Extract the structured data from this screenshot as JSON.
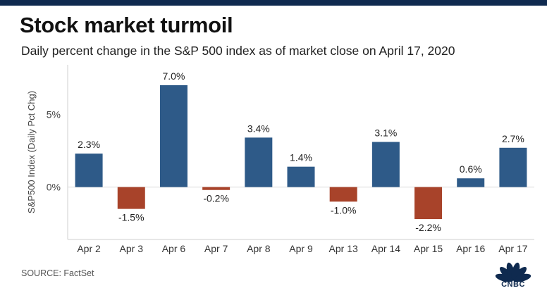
{
  "title": "Stock market turmoil",
  "subtitle": "Daily percent change in the S&P 500 index as of market close on April 17, 2020",
  "source": "SOURCE: FactSet",
  "logo_text": "CNBC",
  "colors": {
    "positive": "#2e5a88",
    "negative": "#a8432a",
    "top_bar": "#0f2a4f"
  },
  "chart_data": {
    "type": "bar",
    "ylabel": "S&P500 Index (Daily Pct Chg)",
    "categories": [
      "Apr 2",
      "Apr 3",
      "Apr 6",
      "Apr 7",
      "Apr 8",
      "Apr 9",
      "Apr 13",
      "Apr 14",
      "Apr 15",
      "Apr 16",
      "Apr 17"
    ],
    "values": [
      2.3,
      -1.5,
      7.0,
      -0.2,
      3.4,
      1.4,
      -1.0,
      3.1,
      -2.2,
      0.6,
      2.7
    ],
    "data_labels": [
      "2.3%",
      "-1.5%",
      "7.0%",
      "-0.2%",
      "3.4%",
      "1.4%",
      "-1.0%",
      "3.1%",
      "-2.2%",
      "0.6%",
      "2.7%"
    ],
    "yticks": [
      0,
      5
    ],
    "ytick_labels": [
      "0%",
      "5%"
    ],
    "ylim": [
      -3.6,
      8.4
    ],
    "grid": false,
    "legend": "none"
  }
}
